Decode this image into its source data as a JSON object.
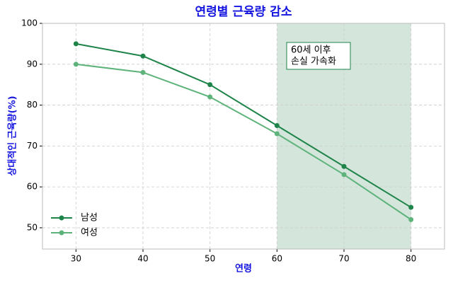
{
  "chart_data": {
    "type": "line",
    "title": "연령별 근육량 감소",
    "xlabel": "연령",
    "ylabel": "상대적인 근육량(%)",
    "x": [
      30,
      40,
      50,
      60,
      70,
      80
    ],
    "series": [
      {
        "name": "남성",
        "color": "#1e8449",
        "values": [
          95,
          92,
          85,
          75,
          65,
          55
        ]
      },
      {
        "name": "여성",
        "color": "#5db37a",
        "values": [
          90,
          88,
          82,
          73,
          63,
          52
        ]
      }
    ],
    "xlim": [
      25,
      85
    ],
    "ylim": [
      44.8,
      100
    ],
    "xticks": [
      30,
      40,
      50,
      60,
      70,
      80
    ],
    "yticks": [
      50,
      60,
      70,
      80,
      90,
      100
    ],
    "grid": true,
    "legend": "lower left",
    "highlight_range": [
      60,
      80
    ],
    "highlight_color": "#d4e6dc",
    "annotation": [
      "60세 이후",
      "손실 가속화"
    ]
  }
}
